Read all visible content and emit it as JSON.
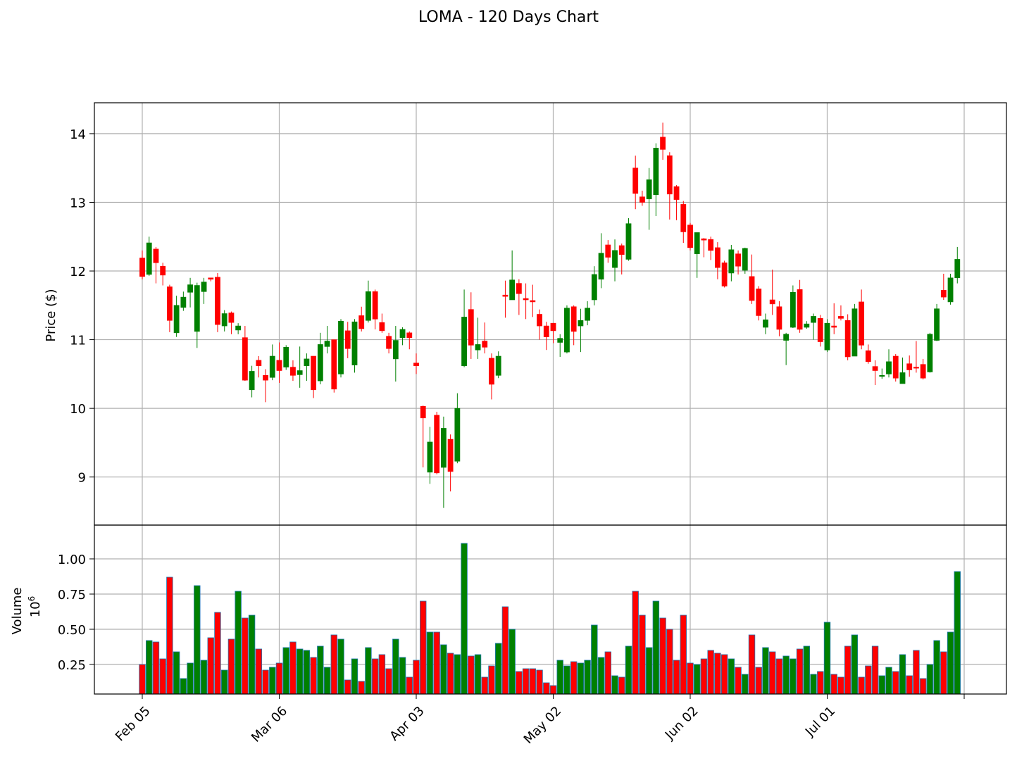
{
  "chart_data": {
    "type": "candlestick",
    "title": "LOMA - 120 Days Chart",
    "price_panel": {
      "ylabel": "Price ($)",
      "yticks": [
        9,
        10,
        11,
        12,
        13,
        14
      ],
      "ylim": [
        8.3,
        14.45
      ],
      "grid": true
    },
    "volume_panel": {
      "ylabel": "Volume",
      "unit_label": "10",
      "unit_exponent": "6",
      "yticks": [
        "0.25",
        "0.50",
        "0.75",
        "1.00"
      ],
      "ylim": [
        0.04,
        1.24
      ],
      "grid": true
    },
    "xticks": [
      {
        "label": "Feb 05",
        "index": 0
      },
      {
        "label": "Mar 06",
        "index": 20
      },
      {
        "label": "Apr 03",
        "index": 40
      },
      {
        "label": "May 02",
        "index": 60
      },
      {
        "label": "Jun 02",
        "index": 80
      },
      {
        "label": "Jul 01",
        "index": 100
      },
      {
        "label": "",
        "index": 120
      }
    ],
    "up_color": "#008000",
    "down_color": "#ff0000",
    "candles": [
      [
        12.19,
        12.3,
        11.88,
        11.92,
        0.25
      ],
      [
        11.95,
        12.5,
        11.93,
        12.41,
        0.42
      ],
      [
        12.32,
        12.35,
        11.82,
        12.12,
        0.41
      ],
      [
        12.07,
        12.12,
        11.79,
        11.94,
        0.29
      ],
      [
        11.77,
        11.8,
        11.11,
        11.28,
        0.87
      ],
      [
        11.1,
        11.64,
        11.04,
        11.5,
        0.34
      ],
      [
        11.47,
        11.7,
        11.42,
        11.62,
        0.15
      ],
      [
        11.69,
        11.9,
        11.47,
        11.8,
        0.26
      ],
      [
        11.12,
        11.83,
        10.88,
        11.79,
        0.81
      ],
      [
        11.7,
        11.9,
        11.52,
        11.84,
        0.28
      ],
      [
        11.9,
        11.9,
        11.85,
        11.88,
        0.44
      ],
      [
        11.91,
        11.97,
        11.11,
        11.22,
        0.62
      ],
      [
        11.2,
        11.43,
        11.12,
        11.38,
        0.21
      ],
      [
        11.39,
        11.41,
        11.08,
        11.25,
        0.43
      ],
      [
        11.14,
        11.24,
        11.08,
        11.2,
        0.77
      ],
      [
        11.03,
        11.2,
        10.4,
        10.41,
        0.58
      ],
      [
        10.27,
        10.62,
        10.16,
        10.54,
        0.6
      ],
      [
        10.7,
        10.76,
        10.45,
        10.62,
        0.36
      ],
      [
        10.48,
        10.57,
        10.09,
        10.41,
        0.21
      ],
      [
        10.45,
        10.93,
        10.41,
        10.76,
        0.23
      ],
      [
        10.7,
        10.96,
        10.37,
        10.55,
        0.26
      ],
      [
        10.6,
        10.92,
        10.56,
        10.89,
        0.37
      ],
      [
        10.6,
        10.7,
        10.4,
        10.48,
        0.41
      ],
      [
        10.49,
        10.9,
        10.3,
        10.55,
        0.36
      ],
      [
        10.62,
        10.8,
        10.4,
        10.72,
        0.35
      ],
      [
        10.76,
        10.76,
        10.15,
        10.27,
        0.3
      ],
      [
        10.4,
        11.1,
        10.35,
        10.93,
        0.38
      ],
      [
        10.9,
        11.2,
        10.8,
        10.98,
        0.23
      ],
      [
        11.0,
        11.0,
        10.23,
        10.28,
        0.46
      ],
      [
        10.5,
        11.3,
        10.45,
        11.27,
        0.43
      ],
      [
        11.13,
        11.26,
        10.73,
        10.87,
        0.14
      ],
      [
        10.63,
        11.3,
        10.52,
        11.26,
        0.29
      ],
      [
        11.35,
        11.48,
        11.12,
        11.16,
        0.13
      ],
      [
        11.28,
        11.86,
        11.25,
        11.7,
        0.37
      ],
      [
        11.7,
        11.73,
        11.15,
        11.3,
        0.29
      ],
      [
        11.25,
        11.38,
        11.1,
        11.13,
        0.32
      ],
      [
        11.05,
        11.1,
        10.8,
        10.87,
        0.22
      ],
      [
        10.72,
        11.2,
        10.39,
        10.99,
        0.43
      ],
      [
        11.03,
        11.18,
        10.92,
        11.15,
        0.3
      ],
      [
        11.1,
        11.12,
        10.86,
        11.03,
        0.16
      ],
      [
        10.66,
        10.8,
        10.5,
        10.62,
        0.28
      ],
      [
        10.03,
        10.04,
        9.14,
        9.86,
        0.7
      ],
      [
        9.07,
        9.73,
        8.9,
        9.51,
        0.48
      ],
      [
        9.9,
        9.95,
        9.04,
        9.06,
        0.48
      ],
      [
        9.14,
        9.88,
        8.55,
        9.71,
        0.39
      ],
      [
        9.55,
        9.62,
        8.79,
        9.08,
        0.33
      ],
      [
        9.23,
        10.22,
        9.2,
        10.0,
        0.32
      ],
      [
        10.62,
        11.73,
        10.6,
        11.33,
        1.11
      ],
      [
        11.44,
        11.69,
        10.72,
        10.92,
        0.31
      ],
      [
        10.85,
        11.32,
        10.72,
        10.93,
        0.32
      ],
      [
        10.98,
        11.25,
        10.8,
        10.89,
        0.16
      ],
      [
        10.73,
        10.8,
        10.13,
        10.35,
        0.24
      ],
      [
        10.48,
        10.83,
        10.44,
        10.76,
        0.4
      ],
      [
        11.65,
        11.86,
        11.32,
        11.63,
        0.66
      ],
      [
        11.58,
        12.3,
        11.58,
        11.87,
        0.5
      ],
      [
        11.82,
        11.88,
        11.36,
        11.67,
        0.2
      ],
      [
        11.6,
        11.82,
        11.3,
        11.58,
        0.22
      ],
      [
        11.57,
        11.8,
        11.33,
        11.55,
        0.22
      ],
      [
        11.37,
        11.44,
        11.0,
        11.2,
        0.21
      ],
      [
        11.2,
        11.26,
        10.85,
        11.04,
        0.12
      ],
      [
        11.24,
        11.24,
        10.95,
        11.13,
        0.1
      ],
      [
        10.96,
        11.08,
        10.75,
        11.02,
        0.28
      ],
      [
        10.82,
        11.5,
        10.8,
        11.46,
        0.24
      ],
      [
        11.48,
        11.5,
        10.92,
        11.12,
        0.27
      ],
      [
        11.2,
        11.45,
        10.82,
        11.28,
        0.26
      ],
      [
        11.28,
        11.56,
        11.21,
        11.46,
        0.28
      ],
      [
        11.58,
        12.07,
        11.5,
        11.95,
        0.53
      ],
      [
        11.88,
        12.55,
        11.75,
        12.26,
        0.3
      ],
      [
        12.38,
        12.45,
        12.12,
        12.2,
        0.34
      ],
      [
        12.05,
        12.46,
        11.85,
        12.3,
        0.17
      ],
      [
        12.37,
        12.4,
        11.95,
        12.24,
        0.16
      ],
      [
        12.17,
        12.77,
        12.15,
        12.69,
        0.38
      ],
      [
        13.5,
        13.68,
        12.9,
        13.13,
        0.77
      ],
      [
        13.08,
        13.17,
        12.95,
        13.0,
        0.6
      ],
      [
        13.05,
        13.5,
        12.6,
        13.33,
        0.37
      ],
      [
        13.11,
        13.86,
        12.8,
        13.79,
        0.7
      ],
      [
        13.95,
        14.16,
        13.62,
        13.77,
        0.58
      ],
      [
        13.68,
        13.73,
        12.75,
        13.12,
        0.5
      ],
      [
        13.23,
        13.25,
        12.74,
        13.04,
        0.28
      ],
      [
        12.97,
        13.02,
        12.41,
        12.57,
        0.6
      ],
      [
        12.67,
        12.7,
        12.3,
        12.34,
        0.26
      ],
      [
        12.25,
        12.55,
        11.9,
        12.56,
        0.25
      ],
      [
        12.47,
        12.48,
        12.2,
        12.45,
        0.29
      ],
      [
        12.46,
        12.5,
        12.16,
        12.3,
        0.35
      ],
      [
        12.34,
        12.42,
        11.88,
        12.05,
        0.33
      ],
      [
        12.12,
        12.15,
        11.76,
        11.78,
        0.32
      ],
      [
        11.97,
        12.38,
        11.85,
        12.31,
        0.29
      ],
      [
        12.25,
        12.3,
        11.95,
        12.07,
        0.23
      ],
      [
        12.01,
        12.34,
        11.96,
        12.33,
        0.18
      ],
      [
        11.92,
        12.24,
        11.52,
        11.57,
        0.46
      ],
      [
        11.74,
        11.78,
        11.28,
        11.35,
        0.23
      ],
      [
        11.18,
        11.38,
        11.08,
        11.29,
        0.37
      ],
      [
        11.58,
        12.02,
        11.36,
        11.52,
        0.34
      ],
      [
        11.48,
        11.56,
        11.05,
        11.15,
        0.29
      ],
      [
        10.99,
        11.1,
        10.63,
        11.08,
        0.31
      ],
      [
        11.18,
        11.79,
        11.17,
        11.69,
        0.29
      ],
      [
        11.73,
        11.87,
        11.1,
        11.15,
        0.36
      ],
      [
        11.18,
        11.27,
        11.16,
        11.23,
        0.38
      ],
      [
        11.25,
        11.38,
        11.0,
        11.34,
        0.18
      ],
      [
        11.31,
        11.36,
        10.9,
        10.97,
        0.2
      ],
      [
        10.85,
        11.3,
        10.82,
        11.24,
        0.55
      ],
      [
        11.2,
        11.53,
        11.08,
        11.18,
        0.18
      ],
      [
        11.34,
        11.5,
        11.28,
        11.31,
        0.16
      ],
      [
        11.28,
        11.37,
        10.7,
        10.75,
        0.38
      ],
      [
        10.76,
        11.52,
        10.76,
        11.45,
        0.46
      ],
      [
        11.55,
        11.73,
        10.86,
        10.92,
        0.16
      ],
      [
        10.84,
        10.93,
        10.65,
        10.68,
        0.24
      ],
      [
        10.61,
        10.7,
        10.34,
        10.55,
        0.38
      ],
      [
        10.47,
        10.58,
        10.43,
        10.48,
        0.17
      ],
      [
        10.5,
        10.86,
        10.45,
        10.68,
        0.23
      ],
      [
        10.76,
        10.79,
        10.39,
        10.44,
        0.2
      ],
      [
        10.36,
        10.74,
        10.36,
        10.52,
        0.32
      ],
      [
        10.65,
        10.77,
        10.46,
        10.56,
        0.17
      ],
      [
        10.6,
        10.98,
        10.52,
        10.59,
        0.35
      ],
      [
        10.64,
        10.72,
        10.42,
        10.44,
        0.15
      ],
      [
        10.53,
        11.1,
        10.52,
        11.08,
        0.25
      ],
      [
        10.99,
        11.52,
        10.98,
        11.45,
        0.42
      ],
      [
        11.72,
        11.96,
        11.58,
        11.62,
        0.34
      ],
      [
        11.55,
        11.96,
        11.51,
        11.9,
        0.48
      ],
      [
        11.9,
        12.35,
        11.82,
        12.17,
        0.91
      ]
    ]
  }
}
